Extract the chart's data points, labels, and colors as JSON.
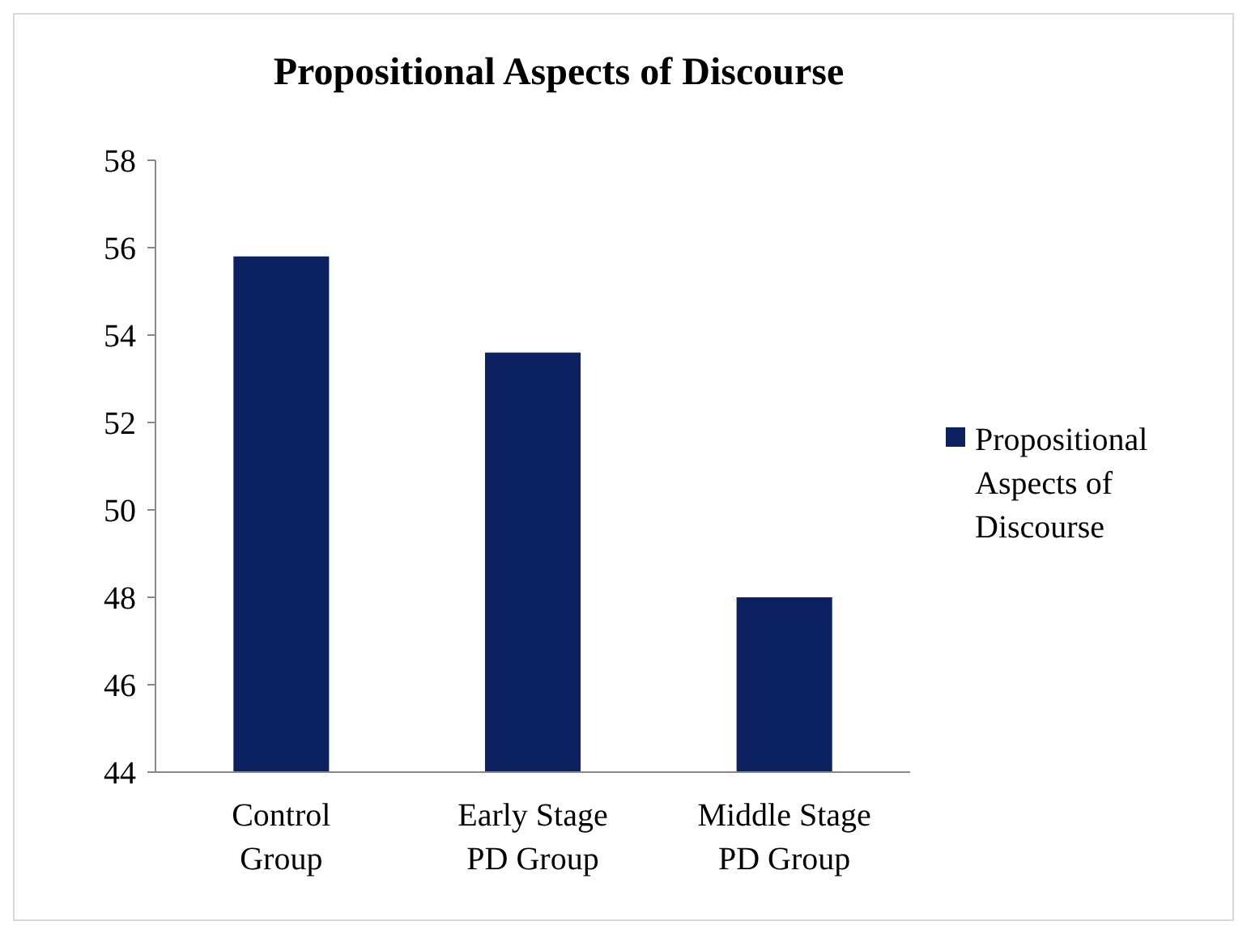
{
  "chart_data": {
    "type": "bar",
    "title": "Propositional Aspects of Discourse",
    "categories": [
      "Control Group",
      "Early Stage PD Group",
      "Middle Stage PD Group"
    ],
    "series": [
      {
        "name": "Propositional Aspects of Discourse",
        "color": "#0c2260",
        "values": [
          55.8,
          53.6,
          48.0
        ]
      }
    ],
    "ylim": [
      44,
      58
    ],
    "yticks": [
      44,
      46,
      48,
      50,
      52,
      54,
      56,
      58
    ],
    "grid": false,
    "legend": "right"
  }
}
